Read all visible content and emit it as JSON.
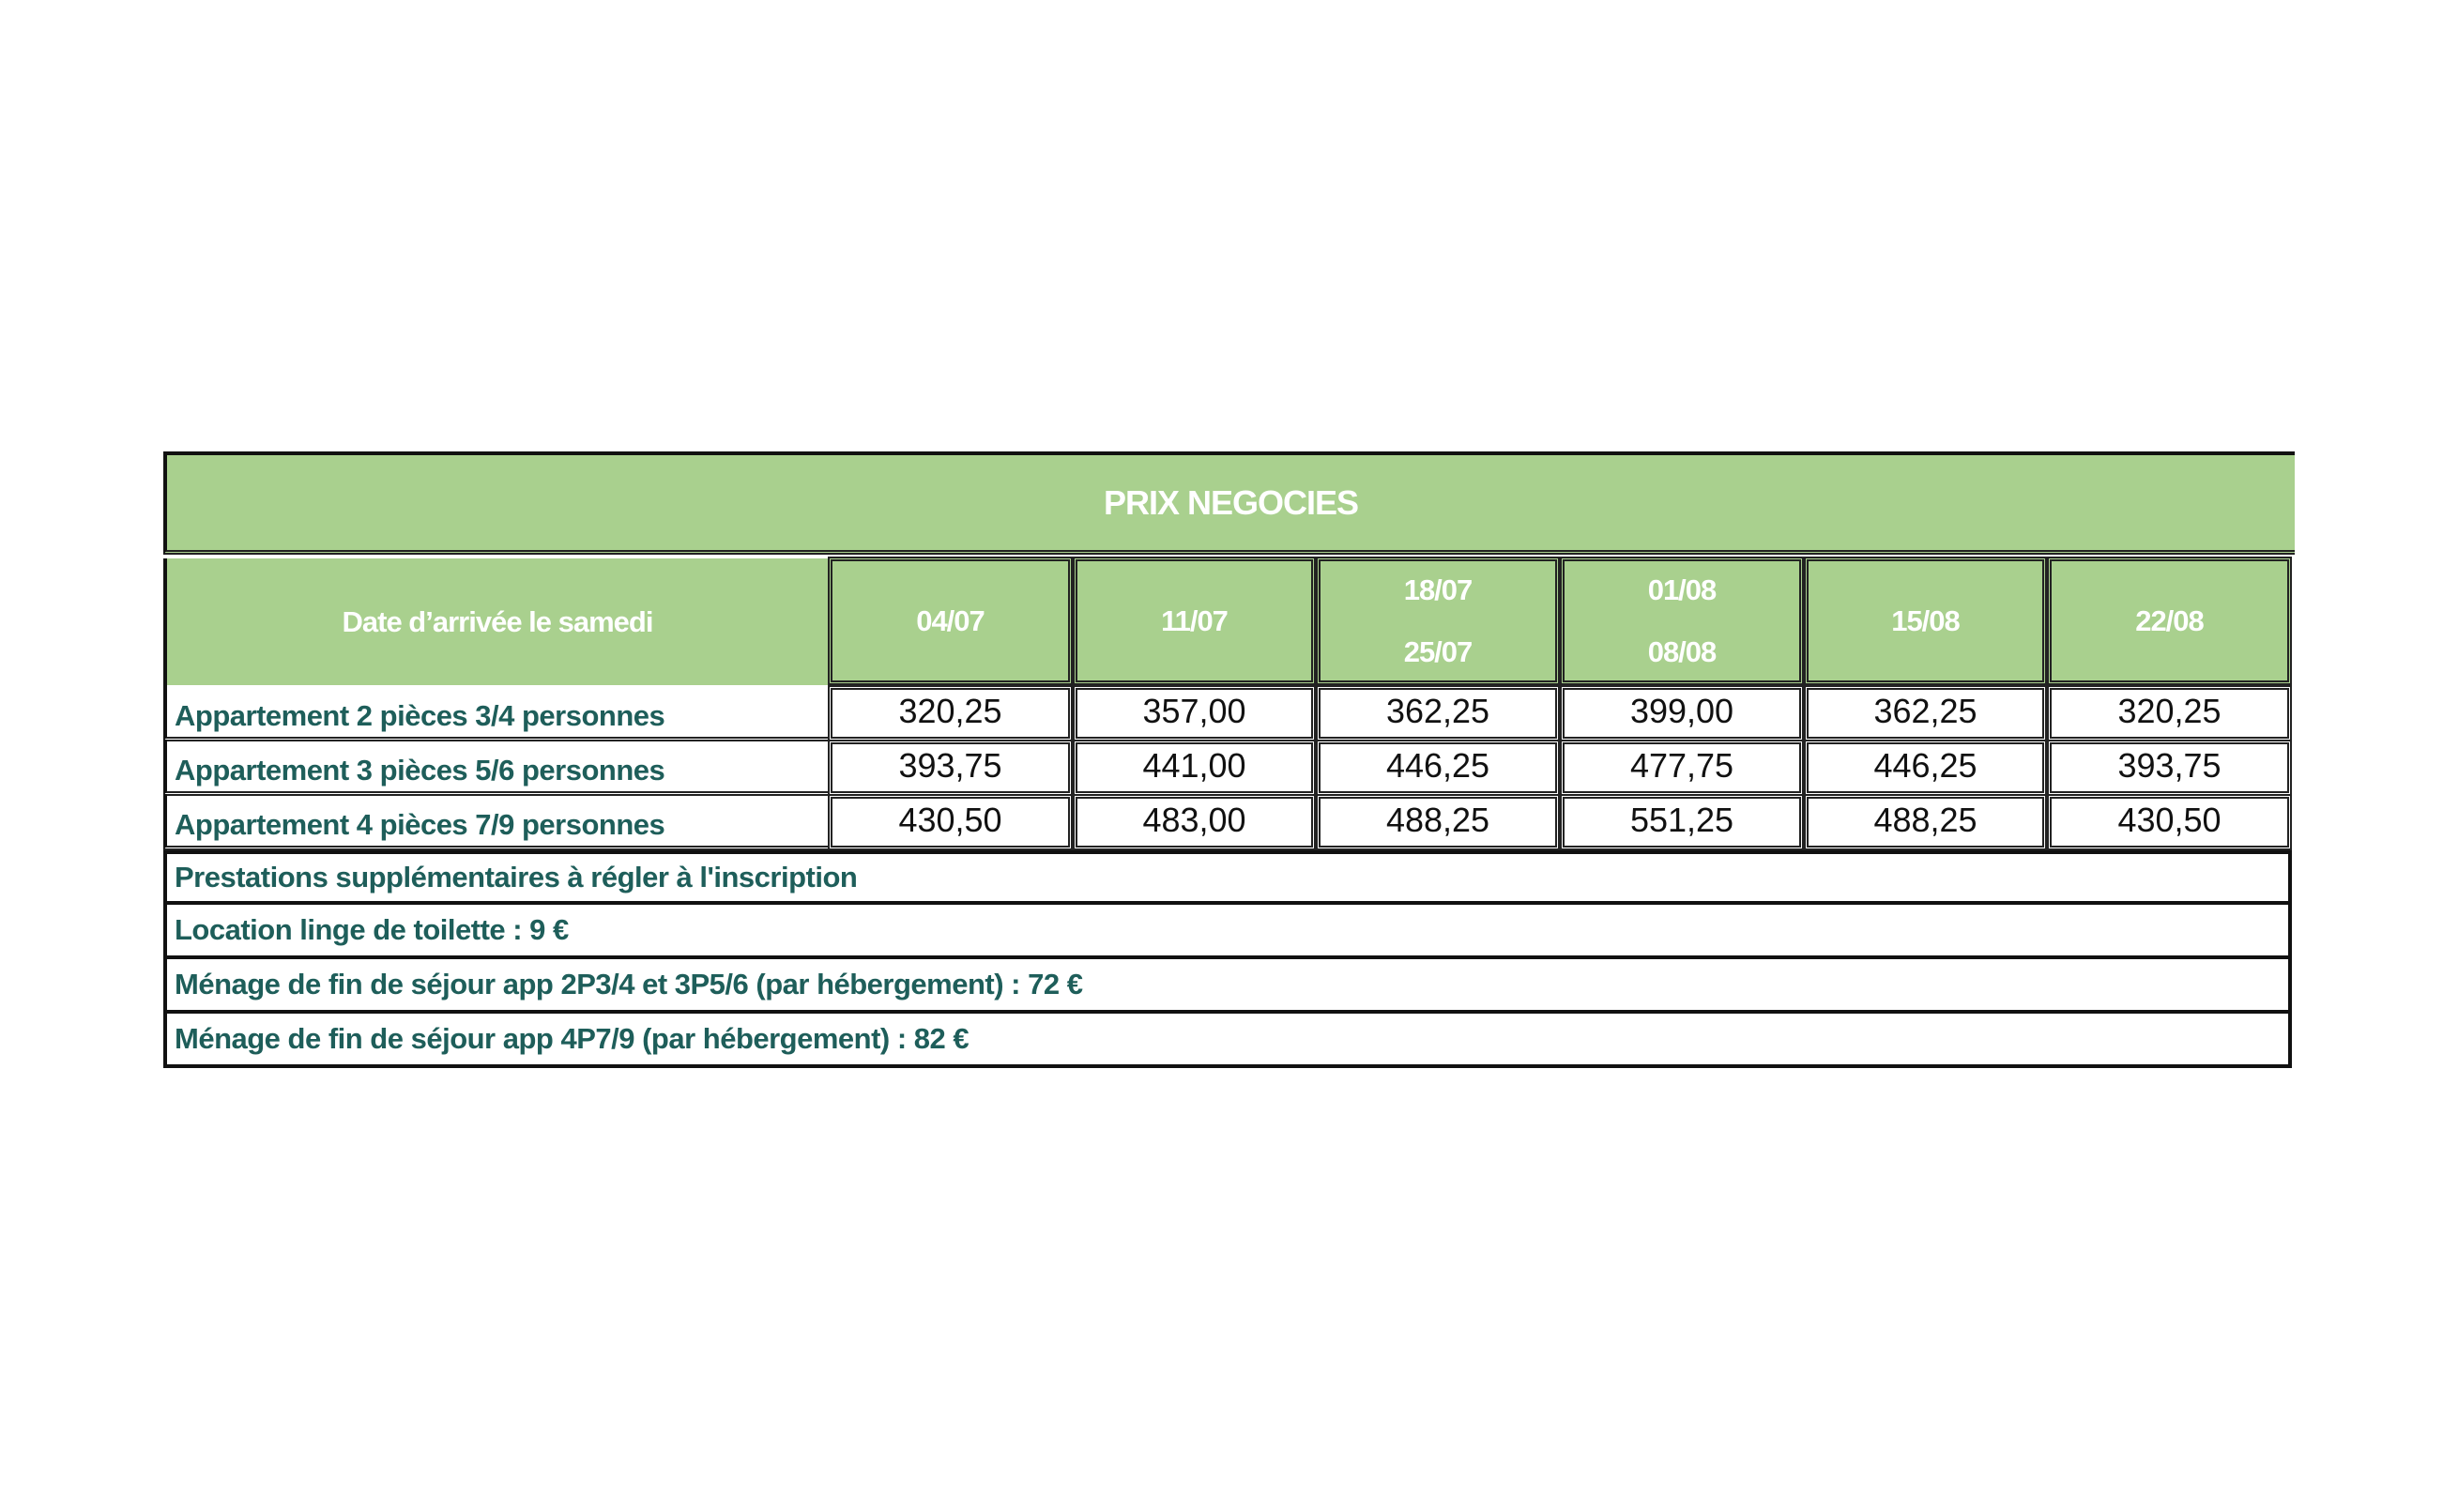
{
  "table": {
    "title": "PRIX NEGOCIES",
    "header_label": "Date d’arrivée le samedi",
    "columns": [
      {
        "line1": "04/07",
        "line2": ""
      },
      {
        "line1": "11/07",
        "line2": ""
      },
      {
        "line1": "18/07",
        "line2": "25/07"
      },
      {
        "line1": "01/08",
        "line2": "08/08"
      },
      {
        "line1": "15/08",
        "line2": ""
      },
      {
        "line1": "22/08",
        "line2": ""
      }
    ],
    "rows": [
      {
        "label": "Appartement 2 pièces 3/4 personnes",
        "values": [
          "320,25",
          "357,00",
          "362,25",
          "399,00",
          "362,25",
          "320,25"
        ]
      },
      {
        "label": "Appartement 3 pièces 5/6 personnes",
        "values": [
          "393,75",
          "441,00",
          "446,25",
          "477,75",
          "446,25",
          "393,75"
        ]
      },
      {
        "label": "Appartement 4 pièces 7/9 personnes",
        "values": [
          "430,50",
          "483,00",
          "488,25",
          "551,25",
          "488,25",
          "430,50"
        ]
      }
    ],
    "extras": [
      "Prestations supplémentaires à régler à l'inscription",
      "Location linge de toilette : 9 €",
      "Ménage de fin de séjour app 2P3/4 et 3P5/6 (par hébergement) : 72 €",
      "Ménage de fin de séjour app 4P7/9 (par hébergement) : 82 €"
    ]
  },
  "colors": {
    "header_green": "#a9d08e",
    "label_teal": "#1e5e5a"
  }
}
